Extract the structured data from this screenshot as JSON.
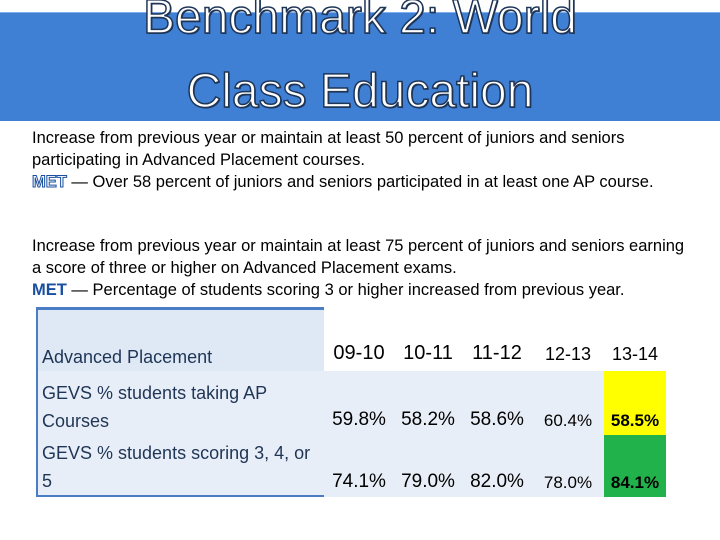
{
  "title": {
    "line1": "Benchmark 2: World",
    "line2": "Class Education"
  },
  "paragraph1": {
    "text": "Increase from previous year or maintain at least 50 percent of juniors and seniors participating in Advanced Placement courses.",
    "status": "MET",
    "detail": " — Over 58 percent of juniors and seniors participated in at least one AP course."
  },
  "paragraph2": {
    "text": "Increase from previous year or maintain at least 75 percent of juniors and seniors earning a score of three or higher on Advanced Placement exams.",
    "status": "MET",
    "detail": " — Percentage of students scoring 3 or higher increased from previous year."
  },
  "table": {
    "header_label": "Advanced Placement",
    "years": [
      "09-10",
      "10-11",
      "11-12",
      "12-13",
      "13-14"
    ],
    "rows": [
      {
        "label": "GEVS % students taking AP Courses",
        "values": [
          "59.8%",
          "58.2%",
          "58.6%",
          "60.4%",
          "58.5%"
        ],
        "highlight": "#ffff00"
      },
      {
        "label": "GEVS % students scoring 3, 4, or 5",
        "values": [
          "74.1%",
          "79.0%",
          "82.0%",
          "78.0%",
          "84.1%"
        ],
        "highlight": "#22b24c"
      }
    ]
  },
  "colors": {
    "header_band": "#3f7fd4",
    "met": "#1a4fa0"
  }
}
